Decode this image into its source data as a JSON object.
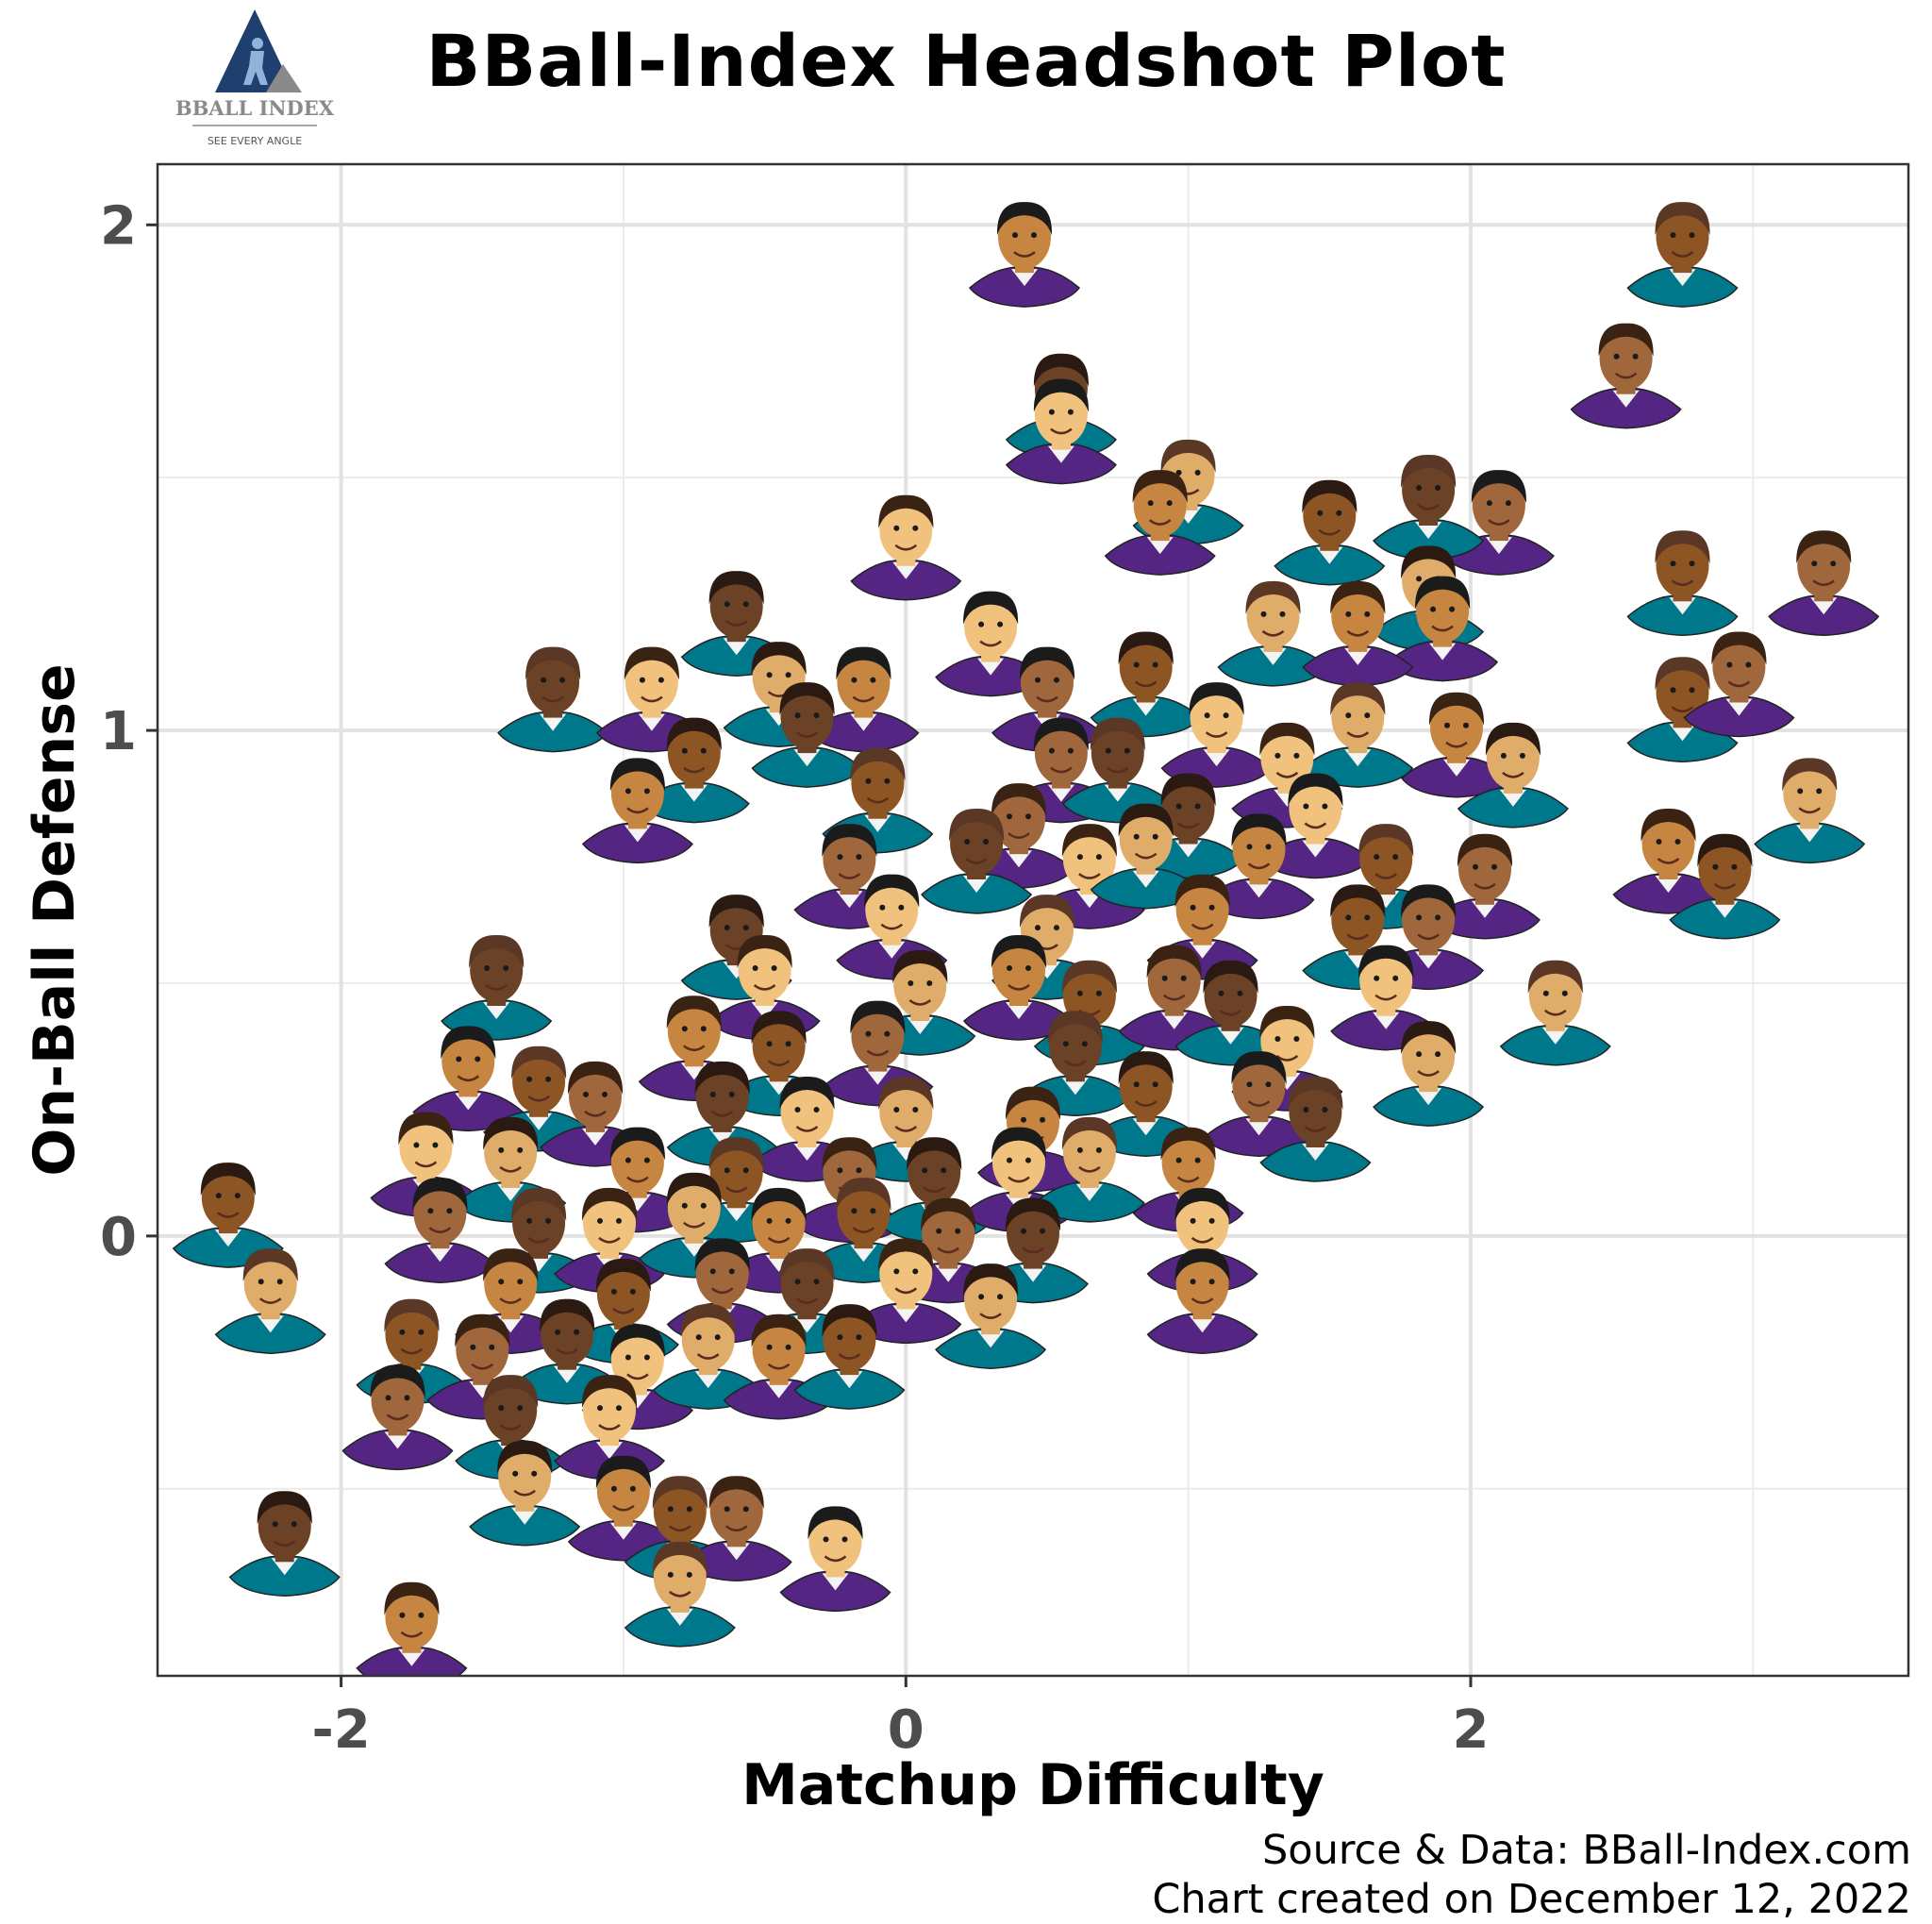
{
  "logo": {
    "name": "BBALL INDEX",
    "tagline": "SEE EVERY ANGLE"
  },
  "chart_data": {
    "type": "scatter",
    "title": "BBall-Index Headshot Plot",
    "xlabel": "Matchup Difficulty",
    "ylabel": "On-Ball Defense",
    "xlim": [
      -2.65,
      3.55
    ],
    "ylim": [
      -0.87,
      2.12
    ],
    "xticks": [
      -2,
      0,
      2
    ],
    "yticks": [
      0,
      1,
      2
    ],
    "grid": true,
    "marker": "player-headshot",
    "points": [
      {
        "x": 0.42,
        "y": 1.95
      },
      {
        "x": 2.75,
        "y": 1.95
      },
      {
        "x": 2.55,
        "y": 1.71
      },
      {
        "x": 0.55,
        "y": 1.65
      },
      {
        "x": 0.55,
        "y": 1.6
      },
      {
        "x": 1.0,
        "y": 1.48
      },
      {
        "x": 0.9,
        "y": 1.42
      },
      {
        "x": 1.5,
        "y": 1.4
      },
      {
        "x": 2.1,
        "y": 1.42
      },
      {
        "x": 1.85,
        "y": 1.45
      },
      {
        "x": 0.0,
        "y": 1.37
      },
      {
        "x": 1.85,
        "y": 1.27
      },
      {
        "x": 1.9,
        "y": 1.21
      },
      {
        "x": 2.75,
        "y": 1.3
      },
      {
        "x": 3.25,
        "y": 1.3
      },
      {
        "x": -0.6,
        "y": 1.22
      },
      {
        "x": 0.3,
        "y": 1.18
      },
      {
        "x": 1.3,
        "y": 1.2
      },
      {
        "x": 1.6,
        "y": 1.2
      },
      {
        "x": 0.85,
        "y": 1.1
      },
      {
        "x": 0.5,
        "y": 1.07
      },
      {
        "x": -1.25,
        "y": 1.07
      },
      {
        "x": -0.9,
        "y": 1.07
      },
      {
        "x": -0.45,
        "y": 1.08
      },
      {
        "x": -0.15,
        "y": 1.07
      },
      {
        "x": 2.75,
        "y": 1.05
      },
      {
        "x": 2.95,
        "y": 1.1
      },
      {
        "x": -0.35,
        "y": 1.0
      },
      {
        "x": 1.1,
        "y": 1.0
      },
      {
        "x": 1.6,
        "y": 1.0
      },
      {
        "x": 1.95,
        "y": 0.98
      },
      {
        "x": -0.75,
        "y": 0.93
      },
      {
        "x": 0.55,
        "y": 0.93
      },
      {
        "x": 0.75,
        "y": 0.93
      },
      {
        "x": 1.35,
        "y": 0.92
      },
      {
        "x": 2.15,
        "y": 0.92
      },
      {
        "x": -0.95,
        "y": 0.85
      },
      {
        "x": -0.1,
        "y": 0.87
      },
      {
        "x": 0.4,
        "y": 0.8
      },
      {
        "x": 1.0,
        "y": 0.82
      },
      {
        "x": 1.45,
        "y": 0.82
      },
      {
        "x": 3.2,
        "y": 0.85
      },
      {
        "x": 2.7,
        "y": 0.75
      },
      {
        "x": 2.9,
        "y": 0.7
      },
      {
        "x": -0.2,
        "y": 0.72
      },
      {
        "x": 0.25,
        "y": 0.75
      },
      {
        "x": 0.65,
        "y": 0.72
      },
      {
        "x": 0.85,
        "y": 0.76
      },
      {
        "x": 1.25,
        "y": 0.74
      },
      {
        "x": 1.7,
        "y": 0.72
      },
      {
        "x": 2.05,
        "y": 0.7
      },
      {
        "x": -0.6,
        "y": 0.58
      },
      {
        "x": -0.05,
        "y": 0.62
      },
      {
        "x": 0.5,
        "y": 0.58
      },
      {
        "x": 1.05,
        "y": 0.62
      },
      {
        "x": 1.6,
        "y": 0.6
      },
      {
        "x": 1.85,
        "y": 0.6
      },
      {
        "x": -1.45,
        "y": 0.5
      },
      {
        "x": -0.5,
        "y": 0.5
      },
      {
        "x": 0.05,
        "y": 0.47
      },
      {
        "x": 0.4,
        "y": 0.5
      },
      {
        "x": 0.65,
        "y": 0.45
      },
      {
        "x": 0.95,
        "y": 0.48
      },
      {
        "x": 1.15,
        "y": 0.45
      },
      {
        "x": 1.7,
        "y": 0.48
      },
      {
        "x": 2.3,
        "y": 0.45
      },
      {
        "x": -0.75,
        "y": 0.38
      },
      {
        "x": -0.45,
        "y": 0.35
      },
      {
        "x": -0.1,
        "y": 0.37
      },
      {
        "x": 0.6,
        "y": 0.35
      },
      {
        "x": 1.35,
        "y": 0.36
      },
      {
        "x": 1.85,
        "y": 0.33
      },
      {
        "x": -1.55,
        "y": 0.32
      },
      {
        "x": -1.3,
        "y": 0.28
      },
      {
        "x": -1.1,
        "y": 0.25
      },
      {
        "x": -0.65,
        "y": 0.25
      },
      {
        "x": -0.35,
        "y": 0.22
      },
      {
        "x": 0.0,
        "y": 0.22
      },
      {
        "x": 0.45,
        "y": 0.2
      },
      {
        "x": 0.85,
        "y": 0.27
      },
      {
        "x": 1.25,
        "y": 0.27
      },
      {
        "x": 1.45,
        "y": 0.22
      },
      {
        "x": -1.7,
        "y": 0.15
      },
      {
        "x": -1.4,
        "y": 0.14
      },
      {
        "x": -0.95,
        "y": 0.12
      },
      {
        "x": -0.6,
        "y": 0.1
      },
      {
        "x": -0.2,
        "y": 0.1
      },
      {
        "x": 0.1,
        "y": 0.1
      },
      {
        "x": 0.4,
        "y": 0.12
      },
      {
        "x": 0.65,
        "y": 0.14
      },
      {
        "x": 1.0,
        "y": 0.12
      },
      {
        "x": -2.4,
        "y": 0.05
      },
      {
        "x": -1.65,
        "y": 0.02
      },
      {
        "x": -1.3,
        "y": 0.0
      },
      {
        "x": -1.05,
        "y": 0.0
      },
      {
        "x": -0.75,
        "y": 0.03
      },
      {
        "x": -0.45,
        "y": 0.0
      },
      {
        "x": -0.15,
        "y": 0.02
      },
      {
        "x": 0.15,
        "y": -0.02
      },
      {
        "x": 0.45,
        "y": -0.02
      },
      {
        "x": 1.05,
        "y": 0.0
      },
      {
        "x": -2.25,
        "y": -0.12
      },
      {
        "x": -1.4,
        "y": -0.12
      },
      {
        "x": -1.0,
        "y": -0.14
      },
      {
        "x": -0.65,
        "y": -0.1
      },
      {
        "x": -0.35,
        "y": -0.12
      },
      {
        "x": 0.0,
        "y": -0.1
      },
      {
        "x": 0.3,
        "y": -0.15
      },
      {
        "x": 1.05,
        "y": -0.12
      },
      {
        "x": -1.75,
        "y": -0.22
      },
      {
        "x": -1.5,
        "y": -0.25
      },
      {
        "x": -1.2,
        "y": -0.22
      },
      {
        "x": -0.95,
        "y": -0.27
      },
      {
        "x": -0.7,
        "y": -0.23
      },
      {
        "x": -0.45,
        "y": -0.25
      },
      {
        "x": -0.2,
        "y": -0.23
      },
      {
        "x": -1.8,
        "y": -0.35
      },
      {
        "x": -1.4,
        "y": -0.37
      },
      {
        "x": -1.05,
        "y": -0.37
      },
      {
        "x": -1.35,
        "y": -0.5
      },
      {
        "x": -1.0,
        "y": -0.53
      },
      {
        "x": -0.8,
        "y": -0.57
      },
      {
        "x": -0.6,
        "y": -0.57
      },
      {
        "x": -2.2,
        "y": -0.6
      },
      {
        "x": -0.25,
        "y": -0.63
      },
      {
        "x": -0.8,
        "y": -0.7
      },
      {
        "x": -1.75,
        "y": -0.78
      }
    ]
  },
  "caption": {
    "source": "Source & Data: BBall-Index.com",
    "created": "Chart created on December 12, 2022"
  },
  "colors": {
    "jerseys": [
      "#ce1141",
      "#1d428a",
      "#00471b",
      "#552583",
      "#fdb927",
      "#000000",
      "#006bb6",
      "#e03a3e",
      "#1d1160",
      "#ffffff",
      "#00788c",
      "#0e2240",
      "#98002e",
      "#007ac1"
    ],
    "skin": [
      "#8d5524",
      "#c68642",
      "#e0ac69",
      "#f1c27d",
      "#6b4226",
      "#a0673c"
    ],
    "hair": [
      "#1b1b1b",
      "#2a1a12",
      "#3b2314",
      "#5a3825"
    ],
    "logo_blue": "#1f3f6e",
    "logo_gray": "#8a8a8a"
  }
}
